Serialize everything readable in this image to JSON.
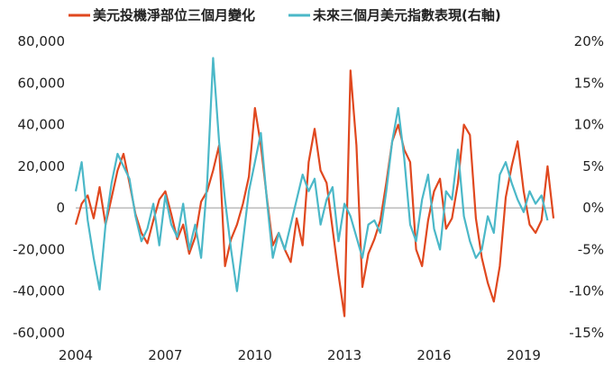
{
  "chart_data": {
    "type": "line",
    "legend_position": "top",
    "grid": false,
    "colors": {
      "net_position": "#e0481f",
      "dxy_forward": "#4bb8c8",
      "zero_line": "#9a9a9a"
    },
    "x_label": "",
    "x_range": [
      2004,
      2020
    ],
    "x_ticks": [
      {
        "value": 2004,
        "label": "2004"
      },
      {
        "value": 2007,
        "label": "2007"
      },
      {
        "value": 2010,
        "label": "2010"
      },
      {
        "value": 2013,
        "label": "2013"
      },
      {
        "value": 2016,
        "label": "2016"
      },
      {
        "value": 2019,
        "label": "2019"
      }
    ],
    "y_left": {
      "label": "",
      "range": [
        -60000,
        80000
      ],
      "ticks": [
        {
          "value": 80000,
          "label": "80,000"
        },
        {
          "value": 60000,
          "label": "60,000"
        },
        {
          "value": 40000,
          "label": "40,000"
        },
        {
          "value": 20000,
          "label": "20,000"
        },
        {
          "value": 0,
          "label": "0"
        },
        {
          "value": -20000,
          "label": "-20,000"
        },
        {
          "value": -40000,
          "label": "-40,000"
        },
        {
          "value": -60000,
          "label": "-60,000"
        }
      ]
    },
    "y_right": {
      "label": "",
      "range": [
        -15,
        20
      ],
      "ticks": [
        {
          "value": 20,
          "label": "20%"
        },
        {
          "value": 15,
          "label": "15%"
        },
        {
          "value": 10,
          "label": "10%"
        },
        {
          "value": 5,
          "label": "5%"
        },
        {
          "value": 0,
          "label": "0%"
        },
        {
          "value": -5,
          "label": "-5%"
        },
        {
          "value": -10,
          "label": "-10%"
        },
        {
          "value": -15,
          "label": "-15%"
        }
      ]
    },
    "series": [
      {
        "name": "美元投機淨部位三個月變化",
        "axis": "left",
        "color": "#e0481f",
        "points": [
          [
            2004.0,
            -8000
          ],
          [
            2004.2,
            2000
          ],
          [
            2004.4,
            6000
          ],
          [
            2004.6,
            -5000
          ],
          [
            2004.8,
            10000
          ],
          [
            2005.0,
            -8000
          ],
          [
            2005.2,
            5000
          ],
          [
            2005.4,
            18000
          ],
          [
            2005.6,
            26000
          ],
          [
            2005.8,
            12000
          ],
          [
            2006.0,
            -3000
          ],
          [
            2006.2,
            -12000
          ],
          [
            2006.4,
            -17000
          ],
          [
            2006.6,
            -6000
          ],
          [
            2006.8,
            4000
          ],
          [
            2007.0,
            8000
          ],
          [
            2007.2,
            -3000
          ],
          [
            2007.4,
            -15000
          ],
          [
            2007.6,
            -8000
          ],
          [
            2007.8,
            -22000
          ],
          [
            2008.0,
            -14000
          ],
          [
            2008.2,
            3000
          ],
          [
            2008.4,
            8000
          ],
          [
            2008.6,
            18000
          ],
          [
            2008.8,
            30000
          ],
          [
            2009.0,
            -28000
          ],
          [
            2009.2,
            -15000
          ],
          [
            2009.4,
            -8000
          ],
          [
            2009.6,
            2000
          ],
          [
            2009.8,
            15000
          ],
          [
            2010.0,
            48000
          ],
          [
            2010.2,
            30000
          ],
          [
            2010.4,
            5000
          ],
          [
            2010.6,
            -18000
          ],
          [
            2010.8,
            -12000
          ],
          [
            2011.0,
            -20000
          ],
          [
            2011.2,
            -26000
          ],
          [
            2011.4,
            -5000
          ],
          [
            2011.6,
            -18000
          ],
          [
            2011.8,
            22000
          ],
          [
            2012.0,
            38000
          ],
          [
            2012.2,
            18000
          ],
          [
            2012.4,
            12000
          ],
          [
            2012.6,
            -10000
          ],
          [
            2012.8,
            -32000
          ],
          [
            2013.0,
            -52000
          ],
          [
            2013.2,
            66000
          ],
          [
            2013.4,
            30000
          ],
          [
            2013.6,
            -38000
          ],
          [
            2013.8,
            -22000
          ],
          [
            2014.0,
            -15000
          ],
          [
            2014.2,
            -6000
          ],
          [
            2014.4,
            12000
          ],
          [
            2014.6,
            32000
          ],
          [
            2014.8,
            40000
          ],
          [
            2015.0,
            28000
          ],
          [
            2015.2,
            22000
          ],
          [
            2015.4,
            -20000
          ],
          [
            2015.6,
            -28000
          ],
          [
            2015.8,
            -6000
          ],
          [
            2016.0,
            8000
          ],
          [
            2016.2,
            14000
          ],
          [
            2016.4,
            -10000
          ],
          [
            2016.6,
            -5000
          ],
          [
            2016.8,
            12000
          ],
          [
            2017.0,
            40000
          ],
          [
            2017.2,
            35000
          ],
          [
            2017.4,
            -5000
          ],
          [
            2017.6,
            -24000
          ],
          [
            2017.8,
            -36000
          ],
          [
            2018.0,
            -45000
          ],
          [
            2018.2,
            -28000
          ],
          [
            2018.4,
            5000
          ],
          [
            2018.6,
            20000
          ],
          [
            2018.8,
            32000
          ],
          [
            2019.0,
            8000
          ],
          [
            2019.2,
            -8000
          ],
          [
            2019.4,
            -12000
          ],
          [
            2019.6,
            -6000
          ],
          [
            2019.8,
            20000
          ],
          [
            2020.0,
            -5000
          ]
        ]
      },
      {
        "name": "未來三個月美元指數表現(右軸)",
        "axis": "right",
        "color": "#4bb8c8",
        "points": [
          [
            2004.0,
            2.0
          ],
          [
            2004.2,
            5.5
          ],
          [
            2004.4,
            -1.5
          ],
          [
            2004.6,
            -6.0
          ],
          [
            2004.8,
            -9.8
          ],
          [
            2005.0,
            -2.0
          ],
          [
            2005.2,
            3.0
          ],
          [
            2005.4,
            6.5
          ],
          [
            2005.6,
            5.0
          ],
          [
            2005.8,
            3.5
          ],
          [
            2006.0,
            -1.0
          ],
          [
            2006.2,
            -4.0
          ],
          [
            2006.4,
            -2.5
          ],
          [
            2006.6,
            0.5
          ],
          [
            2006.8,
            -4.5
          ],
          [
            2007.0,
            1.5
          ],
          [
            2007.2,
            -2.0
          ],
          [
            2007.4,
            -3.5
          ],
          [
            2007.6,
            0.5
          ],
          [
            2007.8,
            -5.0
          ],
          [
            2008.0,
            -2.0
          ],
          [
            2008.2,
            -6.0
          ],
          [
            2008.4,
            3.0
          ],
          [
            2008.6,
            18.0
          ],
          [
            2008.8,
            8.0
          ],
          [
            2009.0,
            1.0
          ],
          [
            2009.2,
            -5.0
          ],
          [
            2009.4,
            -10.0
          ],
          [
            2009.6,
            -4.0
          ],
          [
            2009.8,
            2.0
          ],
          [
            2010.0,
            5.5
          ],
          [
            2010.2,
            9.0
          ],
          [
            2010.4,
            1.0
          ],
          [
            2010.6,
            -6.0
          ],
          [
            2010.8,
            -3.0
          ],
          [
            2011.0,
            -5.0
          ],
          [
            2011.2,
            -2.0
          ],
          [
            2011.4,
            1.0
          ],
          [
            2011.6,
            4.0
          ],
          [
            2011.8,
            2.0
          ],
          [
            2012.0,
            3.5
          ],
          [
            2012.2,
            -2.0
          ],
          [
            2012.4,
            1.0
          ],
          [
            2012.6,
            2.5
          ],
          [
            2012.8,
            -4.0
          ],
          [
            2013.0,
            0.5
          ],
          [
            2013.2,
            -1.0
          ],
          [
            2013.4,
            -3.5
          ],
          [
            2013.6,
            -6.0
          ],
          [
            2013.8,
            -2.0
          ],
          [
            2014.0,
            -1.5
          ],
          [
            2014.2,
            -3.0
          ],
          [
            2014.4,
            2.0
          ],
          [
            2014.6,
            8.0
          ],
          [
            2014.8,
            12.0
          ],
          [
            2015.0,
            6.0
          ],
          [
            2015.2,
            -2.0
          ],
          [
            2015.4,
            -4.0
          ],
          [
            2015.6,
            1.0
          ],
          [
            2015.8,
            4.0
          ],
          [
            2016.0,
            -2.5
          ],
          [
            2016.2,
            -5.0
          ],
          [
            2016.4,
            2.0
          ],
          [
            2016.6,
            1.0
          ],
          [
            2016.8,
            7.0
          ],
          [
            2017.0,
            -1.0
          ],
          [
            2017.2,
            -4.0
          ],
          [
            2017.4,
            -6.0
          ],
          [
            2017.6,
            -5.0
          ],
          [
            2017.8,
            -1.0
          ],
          [
            2018.0,
            -3.0
          ],
          [
            2018.2,
            4.0
          ],
          [
            2018.4,
            5.5
          ],
          [
            2018.6,
            3.0
          ],
          [
            2018.8,
            1.0
          ],
          [
            2019.0,
            -0.5
          ],
          [
            2019.2,
            2.0
          ],
          [
            2019.4,
            0.5
          ],
          [
            2019.6,
            1.5
          ],
          [
            2019.8,
            -1.5
          ]
        ]
      }
    ]
  }
}
